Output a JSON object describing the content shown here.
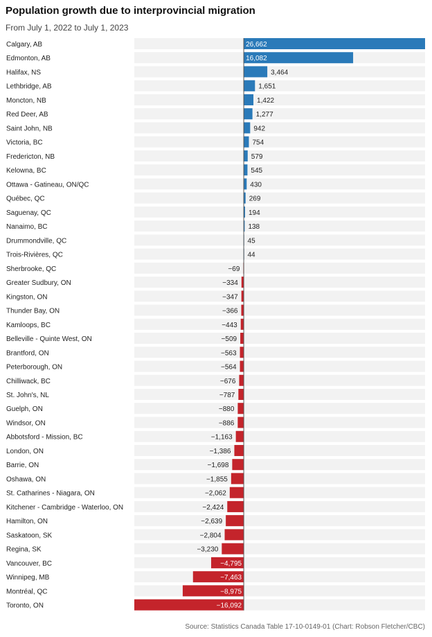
{
  "header": {
    "title": "Population growth due to interprovincial migration",
    "subtitle": "From July 1, 2022 to July 1, 2023"
  },
  "footer": {
    "source": "Source: Statistics Canada Table 17-10-0149-01 (Chart: Robson Fletcher/CBC)"
  },
  "colors": {
    "positive": "#2a7ab9",
    "negative": "#c4242b",
    "row_background": "#f2f2f2",
    "axis": "#555555"
  },
  "chart_data": {
    "type": "bar",
    "orientation": "horizontal",
    "categories": [
      "Calgary, AB",
      "Edmonton, AB",
      "Halifax, NS",
      "Lethbridge, AB",
      "Moncton, NB",
      "Red Deer, AB",
      "Saint John, NB",
      "Victoria, BC",
      "Fredericton, NB",
      "Kelowna, BC",
      "Ottawa - Gatineau, ON/QC",
      "Québec, QC",
      "Saguenay, QC",
      "Nanaimo, BC",
      "Drummondville, QC",
      "Trois-Rivières, QC",
      "Sherbrooke, QC",
      "Greater Sudbury, ON",
      "Kingston, ON",
      "Thunder Bay, ON",
      "Kamloops, BC",
      "Belleville - Quinte West, ON",
      "Brantford, ON",
      "Peterborough, ON",
      "Chilliwack, BC",
      "St. John's, NL",
      "Guelph, ON",
      "Windsor, ON",
      "Abbotsford - Mission, BC",
      "London, ON",
      "Barrie, ON",
      "Oshawa, ON",
      "St. Catharines - Niagara, ON",
      "Kitchener - Cambridge - Waterloo, ON",
      "Hamilton, ON",
      "Saskatoon, SK",
      "Regina, SK",
      "Vancouver, BC",
      "Winnipeg, MB",
      "Montréal, QC",
      "Toronto, ON"
    ],
    "values": [
      26662,
      16082,
      3464,
      1651,
      1422,
      1277,
      942,
      754,
      579,
      545,
      430,
      269,
      194,
      138,
      45,
      44,
      -69,
      -334,
      -347,
      -366,
      -443,
      -509,
      -563,
      -564,
      -676,
      -787,
      -880,
      -886,
      -1163,
      -1386,
      -1698,
      -1855,
      -2062,
      -2424,
      -2639,
      -2804,
      -3230,
      -4795,
      -7463,
      -8975,
      -16092
    ],
    "labels": [
      "26,662",
      "16,082",
      "3,464",
      "1,651",
      "1,422",
      "1,277",
      "942",
      "754",
      "579",
      "545",
      "430",
      "269",
      "194",
      "138",
      "45",
      "44",
      "−69",
      "−334",
      "−347",
      "−366",
      "−443",
      "−509",
      "−563",
      "−564",
      "−676",
      "−787",
      "−880",
      "−886",
      "−1,163",
      "−1,386",
      "−1,698",
      "−1,855",
      "−2,062",
      "−2,424",
      "−2,639",
      "−2,804",
      "−3,230",
      "−4,795",
      "−7,463",
      "−8,975",
      "−16,092"
    ],
    "xlim": [
      -16092,
      26662
    ],
    "grid": false,
    "legend": "none"
  }
}
